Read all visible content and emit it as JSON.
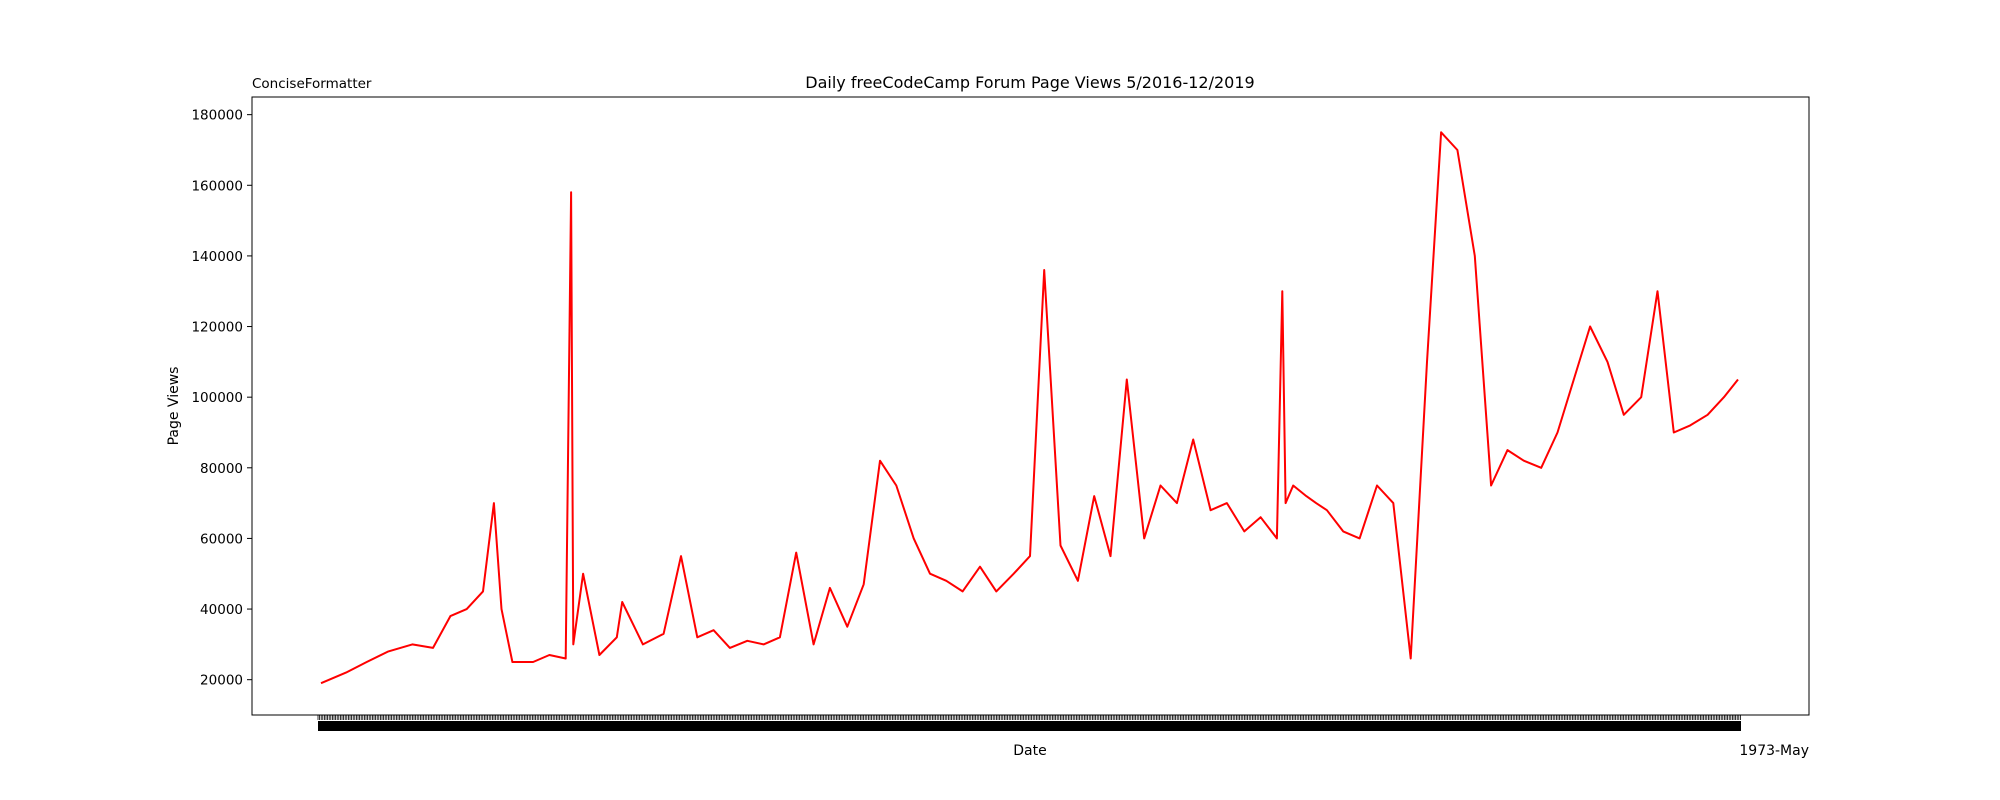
{
  "chart_data": {
    "type": "line",
    "title": "Daily freeCodeCamp Forum Page Views 5/2016-12/2019",
    "corner_label": "ConciseFormatter",
    "xlabel": "Date",
    "ylabel": "Page Views",
    "x_offset_label": "1973-May",
    "x_range": [
      "2016-05-09",
      "2019-12-03"
    ],
    "ylim": [
      10000,
      185000
    ],
    "yticks": [
      20000,
      40000,
      60000,
      80000,
      100000,
      120000,
      140000,
      160000,
      180000
    ],
    "ytick_labels": [
      "20000",
      "40000",
      "60000",
      "80000",
      "100000",
      "120000",
      "140000",
      "160000",
      "180000"
    ],
    "grid": false,
    "line_color": "#ff0000",
    "series": [
      {
        "x": [
          "2016-05-09",
          "2016-06-01",
          "2016-06-20",
          "2016-07-10",
          "2016-08-01",
          "2016-08-20",
          "2016-09-05",
          "2016-09-20",
          "2016-10-05",
          "2016-10-15",
          "2016-10-22",
          "2016-11-01",
          "2016-11-20",
          "2016-12-05",
          "2016-12-20",
          "2016-12-25",
          "2016-12-27",
          "2017-01-05",
          "2017-01-20",
          "2017-02-05",
          "2017-02-10",
          "2017-03-01",
          "2017-03-20",
          "2017-04-05",
          "2017-04-20",
          "2017-05-05",
          "2017-05-20",
          "2017-06-05",
          "2017-06-20",
          "2017-07-05",
          "2017-07-20",
          "2017-08-05",
          "2017-08-20",
          "2017-09-05",
          "2017-09-20",
          "2017-10-05",
          "2017-10-20",
          "2017-11-05",
          "2017-11-20",
          "2017-12-05",
          "2017-12-20",
          "2018-01-05",
          "2018-01-20",
          "2018-02-05",
          "2018-02-20",
          "2018-03-05",
          "2018-03-20",
          "2018-04-05",
          "2018-04-20",
          "2018-05-05",
          "2018-05-20",
          "2018-06-05",
          "2018-06-20",
          "2018-07-05",
          "2018-07-20",
          "2018-08-05",
          "2018-08-20",
          "2018-09-05",
          "2018-09-20",
          "2018-10-05",
          "2018-10-10",
          "2018-10-13",
          "2018-10-20",
          "2018-11-01",
          "2018-11-10",
          "2018-11-20",
          "2018-12-05",
          "2018-12-20",
          "2019-01-05",
          "2019-01-20",
          "2019-02-05",
          "2019-02-20",
          "2019-03-05",
          "2019-03-20",
          "2019-04-05",
          "2019-04-20",
          "2019-05-05",
          "2019-05-20",
          "2019-06-05",
          "2019-06-20",
          "2019-07-05",
          "2019-07-20",
          "2019-08-05",
          "2019-08-20",
          "2019-09-05",
          "2019-09-20",
          "2019-10-05",
          "2019-10-20",
          "2019-11-05",
          "2019-11-20",
          "2019-12-03"
        ],
        "y": [
          19000,
          22000,
          25000,
          28000,
          30000,
          29000,
          38000,
          40000,
          45000,
          70000,
          40000,
          25000,
          25000,
          27000,
          26000,
          158000,
          30000,
          50000,
          27000,
          32000,
          42000,
          30000,
          33000,
          55000,
          32000,
          34000,
          29000,
          31000,
          30000,
          32000,
          56000,
          30000,
          46000,
          35000,
          47000,
          82000,
          75000,
          60000,
          50000,
          48000,
          45000,
          52000,
          45000,
          50000,
          55000,
          136000,
          58000,
          48000,
          72000,
          55000,
          105000,
          60000,
          75000,
          70000,
          88000,
          68000,
          70000,
          62000,
          66000,
          60000,
          130000,
          70000,
          75000,
          72000,
          70000,
          68000,
          62000,
          60000,
          75000,
          70000,
          26000,
          110000,
          175000,
          170000,
          140000,
          75000,
          85000,
          82000,
          80000,
          90000,
          105000,
          120000,
          110000,
          95000,
          100000,
          130000,
          90000,
          92000,
          95000,
          100000,
          105000
        ]
      }
    ]
  }
}
